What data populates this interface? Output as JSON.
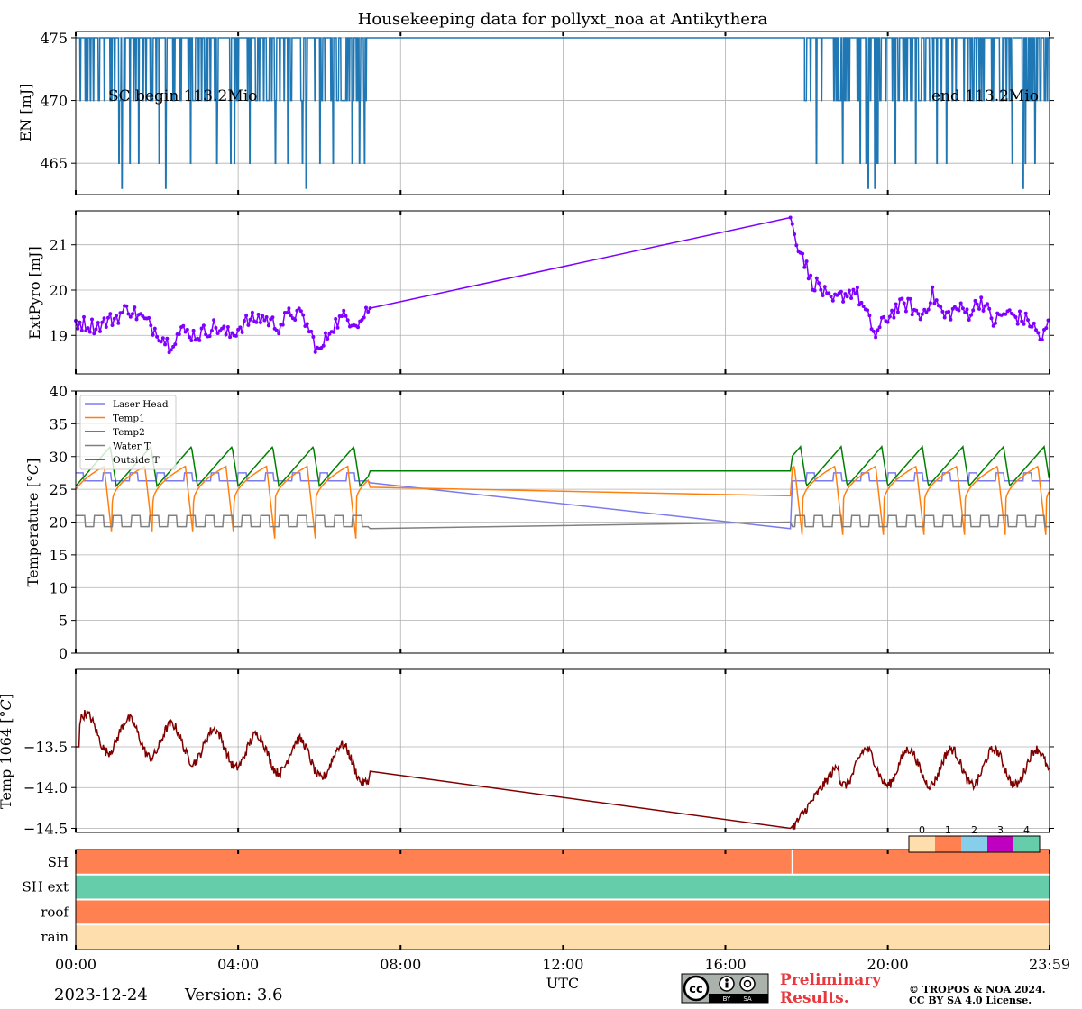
{
  "title": "Housekeeping data for pollyxt_noa at Antikythera",
  "date": "2023-12-24",
  "version": "Version: 3.6",
  "xlabel": "UTC",
  "xticks": [
    "00:00",
    "04:00",
    "08:00",
    "12:00",
    "16:00",
    "20:00",
    "23:59"
  ],
  "license": {
    "badge_text": "cc",
    "by": "BY",
    "sa": "SA",
    "preliminary_1": "Preliminary",
    "preliminary_2": "Results.",
    "copyright_1": "© TROPOS & NOA 2024.",
    "copyright_2": "CC BY SA 4.0 License."
  },
  "chart_data": [
    {
      "type": "line",
      "ylabel": "EN [mJ]",
      "ylim": [
        462.5,
        475.5
      ],
      "yticks": [
        465,
        470,
        475
      ],
      "annotations": [
        "SC begin 113.2Mio",
        "end 113.2Mio"
      ],
      "series": [
        {
          "name": "EN",
          "color": "#1f77b4",
          "base": 475,
          "drops": [
            470,
            465,
            463
          ],
          "gap_hours": [
            7.2,
            17.95
          ]
        }
      ]
    },
    {
      "type": "line",
      "ylabel": "ExtPyro [mJ]",
      "ylim": [
        18.15,
        21.75
      ],
      "yticks": [
        19,
        20,
        21
      ],
      "series": [
        {
          "name": "ExtPyro",
          "color": "#8000ff",
          "marker": "dot",
          "x": [
            0,
            0.5,
            1.0,
            1.3,
            1.6,
            2.0,
            2.3,
            2.6,
            3.0,
            3.4,
            3.8,
            4.2,
            4.6,
            5.0,
            5.3,
            5.6,
            5.9,
            6.0,
            6.3,
            6.6,
            7.0,
            7.2,
            17.6,
            17.7,
            17.9,
            18.1,
            18.3,
            18.6,
            18.9,
            19.2,
            19.5,
            19.7,
            19.9,
            20.2,
            20.5,
            20.8,
            21.1,
            21.4,
            21.7,
            22.0,
            22.3,
            22.6,
            22.9,
            23.2,
            23.5,
            23.8,
            23.98
          ],
          "y": [
            19.3,
            19.2,
            19.4,
            19.6,
            19.4,
            19.1,
            18.8,
            19.1,
            19.0,
            19.2,
            19.0,
            19.3,
            19.4,
            19.2,
            19.5,
            19.4,
            18.8,
            18.6,
            19.2,
            19.4,
            19.3,
            19.6,
            21.6,
            21.2,
            20.8,
            20.2,
            20.1,
            19.7,
            19.9,
            20.0,
            19.4,
            19.0,
            19.3,
            19.6,
            19.7,
            19.4,
            19.9,
            19.4,
            19.6,
            19.5,
            19.8,
            19.3,
            19.5,
            19.4,
            19.3,
            18.9,
            19.3
          ]
        }
      ]
    },
    {
      "type": "line",
      "ylabel": "Temperature [$^\\circ C$]",
      "ylim": [
        0,
        40
      ],
      "yticks": [
        0,
        5,
        10,
        15,
        20,
        25,
        30,
        35,
        40
      ],
      "legend": "top-left",
      "series": [
        {
          "name": "Laser Head",
          "color": "#7b7bf0",
          "values_desc": "26-28 oscillating, 26 at 7.2h to 19 at 17.6h",
          "base": 26.5,
          "gap": [
            26.0,
            19.0
          ]
        },
        {
          "name": "Temp1",
          "color": "#ff7f0e",
          "base": 24.5,
          "low": 17.5,
          "gap": [
            25.3,
            24.0
          ]
        },
        {
          "name": "Temp2",
          "color": "#008000",
          "base": 28.5,
          "high": 31.5,
          "gap": [
            27.8,
            27.8
          ]
        },
        {
          "name": "Water T",
          "color": "#808080",
          "base": 19.5,
          "high": 21.5,
          "gap": [
            19.0,
            20.0
          ]
        },
        {
          "name": "Outside T",
          "color": "#800080"
        }
      ]
    },
    {
      "type": "line",
      "ylabel": "Temp 1064 [$^\\circ C$]",
      "ylim": [
        -14.55,
        -12.55
      ],
      "yticks": [
        -13.5,
        -14.0,
        -14.5
      ],
      "ytick_labels": [
        "−13.5",
        "−14.0",
        "−14.5"
      ],
      "series": [
        {
          "name": "Temp 1064",
          "color": "#800000",
          "gap": [
            -13.8,
            -14.5
          ]
        }
      ]
    },
    {
      "type": "heatmap",
      "rows": [
        "SH",
        "SH ext",
        "roof",
        "rain"
      ],
      "row_colors": [
        "#ff8050",
        "#66cdaa",
        "#ff8050",
        "#ffdead"
      ],
      "colorbar_labels": [
        "0",
        "1",
        "2",
        "3",
        "4"
      ],
      "colorbar_colors": [
        "#ffdead",
        "#ff8050",
        "#87ceeb",
        "#c000c0",
        "#66cdaa"
      ]
    }
  ]
}
